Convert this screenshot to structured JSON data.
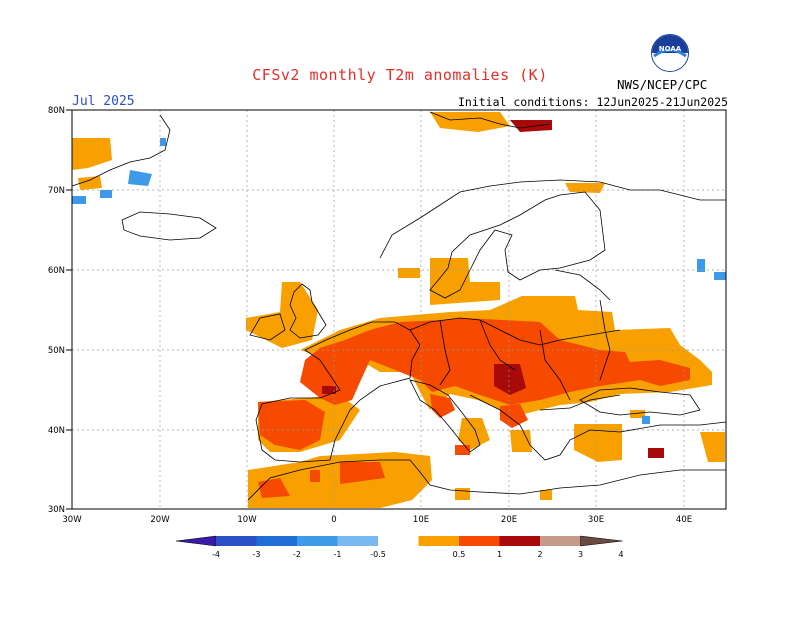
{
  "header": {
    "title": "CFSv2 monthly T2m anomalies (K)",
    "month": "Jul 2025",
    "initial_conditions": "Initial conditions: 12Jun2025-21Jun2025",
    "org": "NWS/NCEP/CPC",
    "logo_text": "NOAA"
  },
  "axes": {
    "lon_labels": [
      "30W",
      "20W",
      "10W",
      "0",
      "10E",
      "20E",
      "30E",
      "40E"
    ],
    "lat_labels": [
      "80N",
      "70N",
      "60N",
      "50N",
      "40N",
      "30N"
    ]
  },
  "colorbar": {
    "labels": [
      "-4",
      "-3",
      "-2",
      "-1",
      "-0.5",
      "0.5",
      "1",
      "2",
      "3",
      "4"
    ],
    "colors": [
      "#3a1aa8",
      "#2b4fc4",
      "#1f6fd6",
      "#3d9ae8",
      "#79b9f0",
      "#ffffff",
      "#f7a000",
      "#f54a00",
      "#a80a0a",
      "#c59a8a",
      "#6a4a40"
    ]
  },
  "colors": {
    "title": "#e0302a",
    "month": "#2a4fd0",
    "grid": "#9a9a9a"
  }
}
